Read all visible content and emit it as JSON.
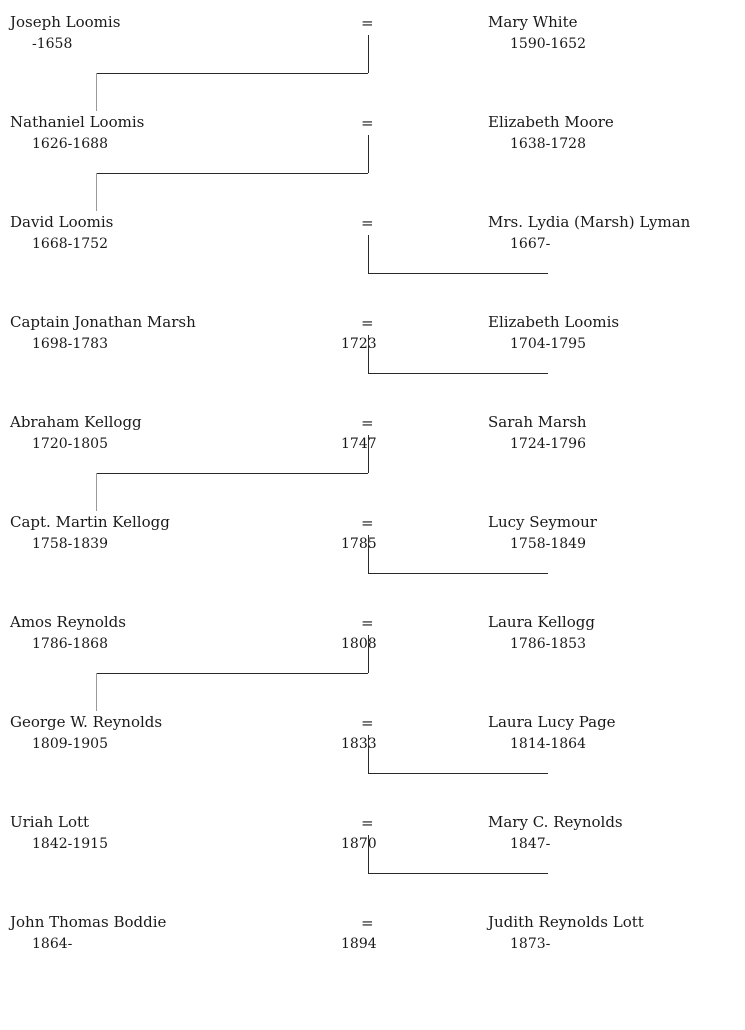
{
  "generations": [
    {
      "husband": {
        "name": "Joseph Loomis",
        "years": "-1658"
      },
      "equals": "=",
      "married": "",
      "wife": {
        "name": "Mary White",
        "years": "1590-1652"
      }
    },
    {
      "husband": {
        "name": "Nathaniel Loomis",
        "years": "1626-1688"
      },
      "equals": "=",
      "married": "",
      "wife": {
        "name": "Elizabeth Moore",
        "years": "1638-1728"
      }
    },
    {
      "husband": {
        "name": "David Loomis",
        "years": "1668-1752"
      },
      "equals": "=",
      "married": "",
      "wife": {
        "name": "Mrs. Lydia (Marsh) Lyman",
        "years": "1667-"
      }
    },
    {
      "husband": {
        "name": "Captain Jonathan Marsh",
        "years": "1698-1783"
      },
      "equals": "=",
      "married": "1723",
      "wife": {
        "name": "Elizabeth Loomis",
        "years": "1704-1795"
      }
    },
    {
      "husband": {
        "name": "Abraham Kellogg",
        "years": "1720-1805"
      },
      "equals": "=",
      "married": "1747",
      "wife": {
        "name": "Sarah Marsh",
        "years": "1724-1796"
      }
    },
    {
      "husband": {
        "name": "Capt. Martin Kellogg",
        "years": "1758-1839"
      },
      "equals": "=",
      "married": "1785",
      "wife": {
        "name": "Lucy Seymour",
        "years": "1758-1849"
      }
    },
    {
      "husband": {
        "name": "Amos Reynolds",
        "years": "1786-1868"
      },
      "equals": "=",
      "married": "1808",
      "wife": {
        "name": "Laura Kellogg",
        "years": "1786-1853"
      }
    },
    {
      "husband": {
        "name": "George W. Reynolds",
        "years": "1809-1905"
      },
      "equals": "=",
      "married": "1833",
      "wife": {
        "name": "Laura Lucy Page",
        "years": "1814-1864"
      }
    },
    {
      "husband": {
        "name": "Uriah Lott",
        "years": "1842-1915"
      },
      "equals": "=",
      "married": "1870",
      "wife": {
        "name": "Mary C. Reynolds",
        "years": "1847-"
      }
    },
    {
      "husband": {
        "name": "John Thomas Boddie",
        "years": "1864-"
      },
      "equals": "=",
      "married": "1894",
      "wife": {
        "name": "Judith Reynolds Lott",
        "years": "1873-"
      }
    }
  ],
  "connectors": [
    "husband",
    "husband",
    "wife",
    "wife",
    "husband",
    "wife",
    "husband",
    "wife",
    "wife"
  ]
}
